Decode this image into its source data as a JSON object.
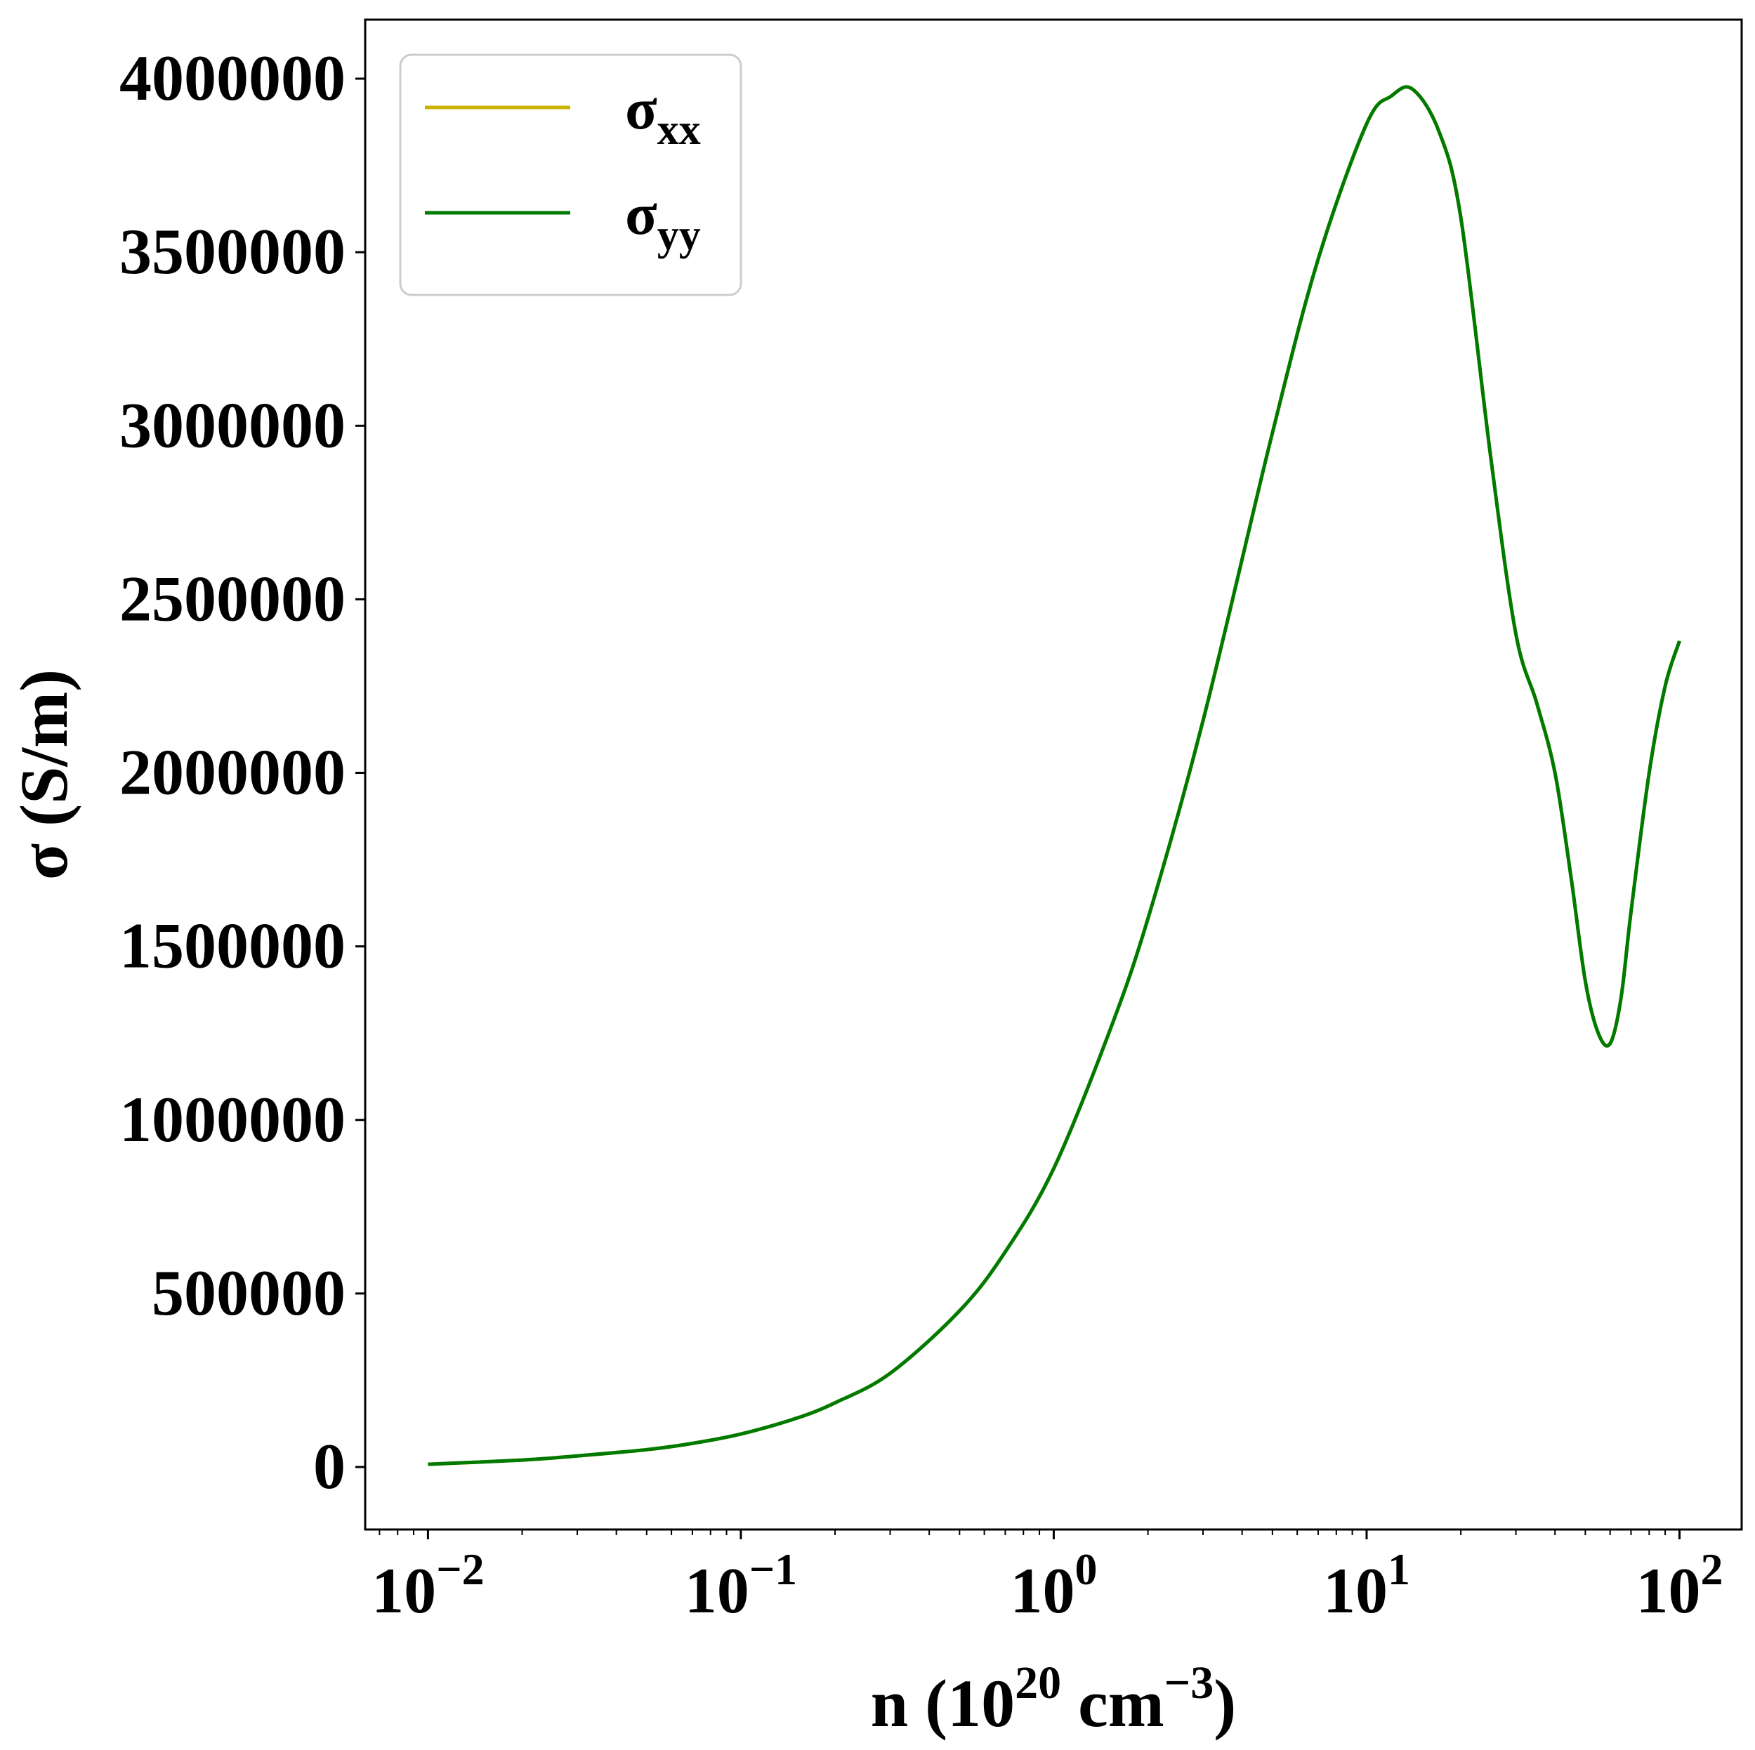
{
  "chart_data": {
    "type": "line",
    "title": "",
    "xlabel": {
      "base": "n (10",
      "sup1": "20",
      "mid": " cm",
      "sup2": "−3",
      "end": ")"
    },
    "ylabel": "σ (S/m)",
    "xscale": "log",
    "xlim": [
      0.0063,
      158
    ],
    "ylim": [
      -180000,
      4170000
    ],
    "x_ticks": [
      {
        "value": 0.01,
        "base": "10",
        "exp": "−2"
      },
      {
        "value": 0.1,
        "base": "10",
        "exp": "−1"
      },
      {
        "value": 1,
        "base": "10",
        "exp": "0"
      },
      {
        "value": 10,
        "base": "10",
        "exp": "1"
      },
      {
        "value": 100,
        "base": "10",
        "exp": "2"
      }
    ],
    "y_ticks": [
      {
        "value": 0,
        "label": "0"
      },
      {
        "value": 500000,
        "label": "500000"
      },
      {
        "value": 1000000,
        "label": "1000000"
      },
      {
        "value": 1500000,
        "label": "1500000"
      },
      {
        "value": 2000000,
        "label": "2000000"
      },
      {
        "value": 2500000,
        "label": "2500000"
      },
      {
        "value": 3000000,
        "label": "3000000"
      },
      {
        "value": 3500000,
        "label": "3500000"
      },
      {
        "value": 4000000,
        "label": "4000000"
      }
    ],
    "grid": false,
    "legend_position": "top-left",
    "series": [
      {
        "name": {
          "base": "σ",
          "sub": "xx"
        },
        "color": "#c8b400",
        "x": [
          0.01,
          0.02,
          0.03,
          0.05,
          0.07,
          0.1,
          0.15,
          0.2,
          0.3,
          0.5,
          0.7,
          1,
          1.5,
          2,
          3,
          5,
          7,
          10,
          12,
          14,
          17,
          20,
          25,
          30,
          35,
          40,
          45,
          50,
          55,
          60,
          65,
          70,
          80,
          90,
          100
        ],
        "y": [
          8000,
          20000,
          32000,
          50000,
          68000,
          95000,
          140000,
          185000,
          270000,
          450000,
          620000,
          860000,
          1250000,
          1580000,
          2150000,
          2980000,
          3480000,
          3870000,
          3950000,
          3970000,
          3850000,
          3600000,
          2900000,
          2400000,
          2200000,
          2000000,
          1700000,
          1400000,
          1250000,
          1220000,
          1350000,
          1600000,
          2000000,
          2250000,
          2380000
        ]
      },
      {
        "name": {
          "base": "σ",
          "sub": "yy"
        },
        "color": "#007a00",
        "x": [
          0.01,
          0.02,
          0.03,
          0.05,
          0.07,
          0.1,
          0.15,
          0.2,
          0.3,
          0.5,
          0.7,
          1,
          1.5,
          2,
          3,
          5,
          7,
          10,
          12,
          14,
          17,
          20,
          25,
          30,
          35,
          40,
          45,
          50,
          55,
          60,
          65,
          70,
          80,
          90,
          100
        ],
        "y": [
          8000,
          20000,
          32000,
          50000,
          68000,
          95000,
          140000,
          185000,
          270000,
          450000,
          620000,
          860000,
          1250000,
          1580000,
          2150000,
          2980000,
          3480000,
          3870000,
          3950000,
          3970000,
          3850000,
          3600000,
          2900000,
          2400000,
          2200000,
          2000000,
          1700000,
          1400000,
          1250000,
          1220000,
          1350000,
          1600000,
          2000000,
          2250000,
          2380000
        ]
      }
    ]
  }
}
